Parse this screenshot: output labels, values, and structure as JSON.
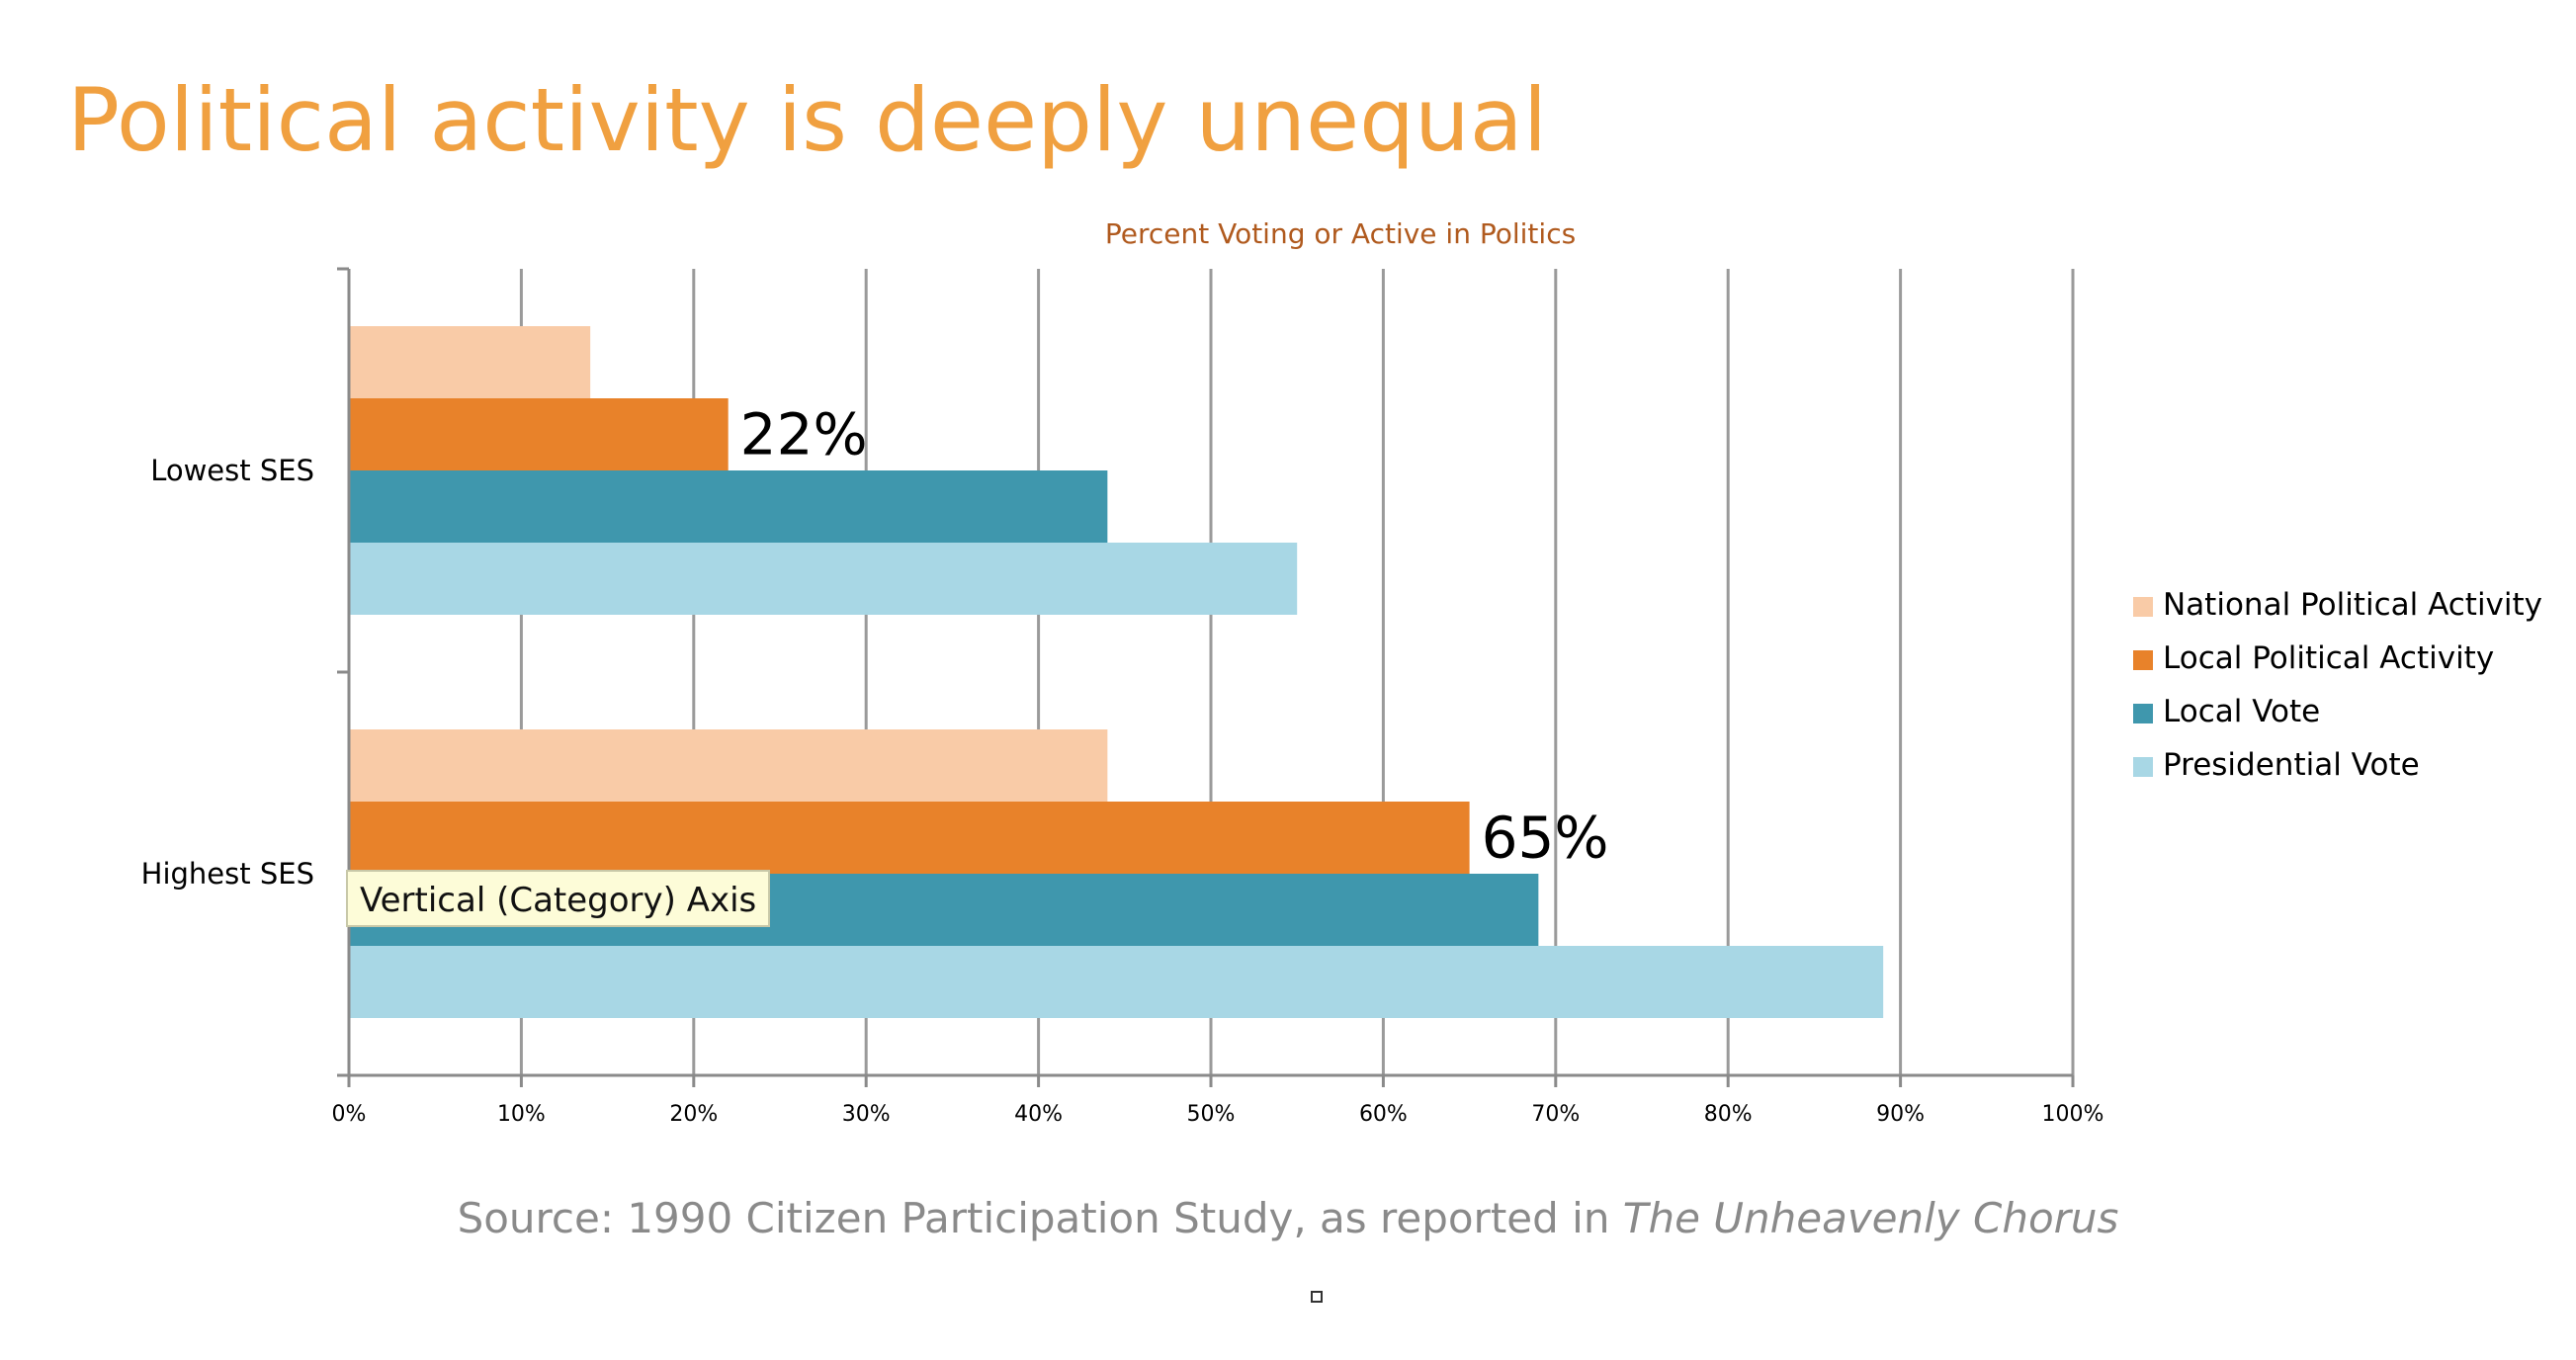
{
  "slide": {
    "title": "Political activity is deeply unequal",
    "source_prefix": "Source: 1990 Citizen Participation Study, as reported in ",
    "source_book": "The Unheavenly Chorus",
    "tooltip": "Vertical (Category) Axis"
  },
  "chart_data": {
    "type": "bar",
    "orientation": "horizontal",
    "title": "Percent Voting or Active in Politics",
    "categories": [
      "Lowest SES",
      "Highest SES"
    ],
    "series": [
      {
        "name": "National Political Activity",
        "values": [
          14,
          44
        ],
        "color": "#f9cba7"
      },
      {
        "name": "Local Political Activity",
        "values": [
          22,
          65
        ],
        "color": "#e8822a"
      },
      {
        "name": "Local Vote",
        "values": [
          44,
          69
        ],
        "color": "#3f97ad"
      },
      {
        "name": "Presidential Vote",
        "values": [
          55,
          89
        ],
        "color": "#a8d7e5"
      }
    ],
    "xlim": [
      0,
      100
    ],
    "x_ticks": [
      "0%",
      "10%",
      "20%",
      "30%",
      "40%",
      "50%",
      "60%",
      "70%",
      "80%",
      "90%",
      "100%"
    ],
    "grid": true,
    "legend": "right",
    "annotations": [
      {
        "category": "Lowest SES",
        "series": "Local Political Activity",
        "text": "22%"
      },
      {
        "category": "Highest SES",
        "series": "Local Political Activity",
        "text": "65%"
      }
    ]
  }
}
